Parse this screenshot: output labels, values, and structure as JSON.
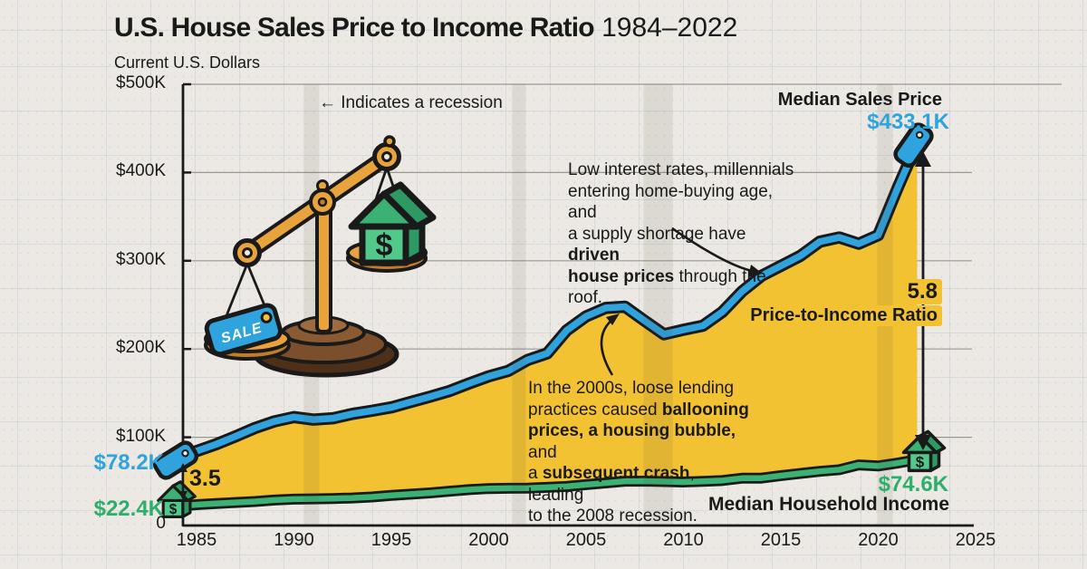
{
  "title": {
    "main": "U.S. House Sales Price to Income Ratio",
    "years": " 1984–2022"
  },
  "subtitle": "Current U.S. Dollars",
  "colors": {
    "blue": "#2EA3DD",
    "green": "#3BB273",
    "green_text": "#2EAD6B",
    "yellow": "#F2C233",
    "ink": "#1a1a1a",
    "paper": "#ECE9E4"
  },
  "labels": {
    "recession_note": "← Indicates a recession",
    "sales_price_label": "Median Sales Price",
    "sales_price_value": "$433.1K",
    "income_label": "Median Household Income",
    "income_value_end": "$74.6K",
    "price_value_start": "$78.2K",
    "income_value_start": "$22.4K",
    "ratio_start": "3.5",
    "ratio_end": "5.8",
    "ratio_label": "Price-to-Income Ratio",
    "zero": "0"
  },
  "illustration": {
    "tag_text": "SALE",
    "house_symbol": "$"
  },
  "annotations": {
    "boom": {
      "lines": [
        [
          {
            "t": "Low interest rates, millennials"
          }
        ],
        [
          {
            "t": "entering home-buying age, and"
          }
        ],
        [
          {
            "t": "a supply shortage have "
          },
          {
            "t": "driven",
            "b": 1
          }
        ],
        [
          {
            "t": "house prices",
            "b": 1
          },
          {
            "t": " through the roof."
          }
        ]
      ]
    },
    "bubble": {
      "lines": [
        [
          {
            "t": "In the 2000s, loose lending"
          }
        ],
        [
          {
            "t": "practices caused "
          },
          {
            "t": "ballooning",
            "b": 1
          }
        ],
        [
          {
            "t": "prices, a housing bubble,",
            "b": 1
          },
          {
            "t": " and"
          }
        ],
        [
          {
            "t": "a "
          },
          {
            "t": "subsequent crash",
            "b": 1
          },
          {
            "t": ", leading"
          }
        ],
        [
          {
            "t": "to the 2008 recession."
          }
        ]
      ]
    }
  },
  "chart_data": {
    "type": "area",
    "title": "U.S. House Sales Price to Income Ratio 1984–2022",
    "ylabel": "Current U.S. Dollars",
    "ylim": [
      0,
      500
    ],
    "y_ticks": [
      {
        "label": "$500K",
        "value": 500
      },
      {
        "label": "$400K",
        "value": 400
      },
      {
        "label": "$300K",
        "value": 300
      },
      {
        "label": "$200K",
        "value": 200
      },
      {
        "label": "$100K",
        "value": 100
      }
    ],
    "x_ticks": [
      1985,
      1990,
      1995,
      2000,
      2005,
      2010,
      2015,
      2020,
      2025
    ],
    "x": [
      1984,
      1985,
      1986,
      1987,
      1988,
      1989,
      1990,
      1991,
      1992,
      1993,
      1994,
      1995,
      1996,
      1997,
      1998,
      1999,
      2000,
      2001,
      2002,
      2003,
      2004,
      2005,
      2006,
      2007,
      2008,
      2009,
      2010,
      2011,
      2012,
      2013,
      2014,
      2015,
      2016,
      2017,
      2018,
      2019,
      2020,
      2021,
      2022
    ],
    "series": [
      {
        "name": "Median Sales Price",
        "units": "$K",
        "values": [
          78.2,
          84.3,
          92.0,
          101.0,
          110.5,
          118.0,
          122.9,
          120.0,
          121.5,
          126.5,
          130.0,
          133.9,
          140.0,
          146.0,
          152.5,
          161.0,
          169.0,
          175.2,
          187.6,
          195.0,
          221.0,
          237.0,
          246.5,
          247.9,
          232.1,
          216.7,
          221.8,
          226.4,
          242.1,
          265.1,
          282.8,
          294.2,
          305.5,
          321.6,
          326.4,
          319.3,
          329.0,
          382.6,
          433.1
        ]
      },
      {
        "name": "Median Household Income",
        "units": "$K",
        "values": [
          22.4,
          23.6,
          24.9,
          26.1,
          27.2,
          28.9,
          29.9,
          30.1,
          30.6,
          31.2,
          32.3,
          34.1,
          35.5,
          37.0,
          38.9,
          40.7,
          41.9,
          42.2,
          42.4,
          43.3,
          44.3,
          46.3,
          48.2,
          50.2,
          50.3,
          49.8,
          49.3,
          50.1,
          51.0,
          53.6,
          53.7,
          56.5,
          59.0,
          61.4,
          63.2,
          68.7,
          67.5,
          70.8,
          74.6
        ]
      }
    ],
    "recessions": [
      [
        1990.5,
        1991.3
      ],
      [
        2001.2,
        2001.9
      ],
      [
        2007.95,
        2009.45
      ],
      [
        2019.95,
        2020.75
      ]
    ],
    "price_to_income_ratio": {
      "start": 3.5,
      "end": 5.8
    },
    "legend_position": "annotated-inline",
    "grid": true
  }
}
